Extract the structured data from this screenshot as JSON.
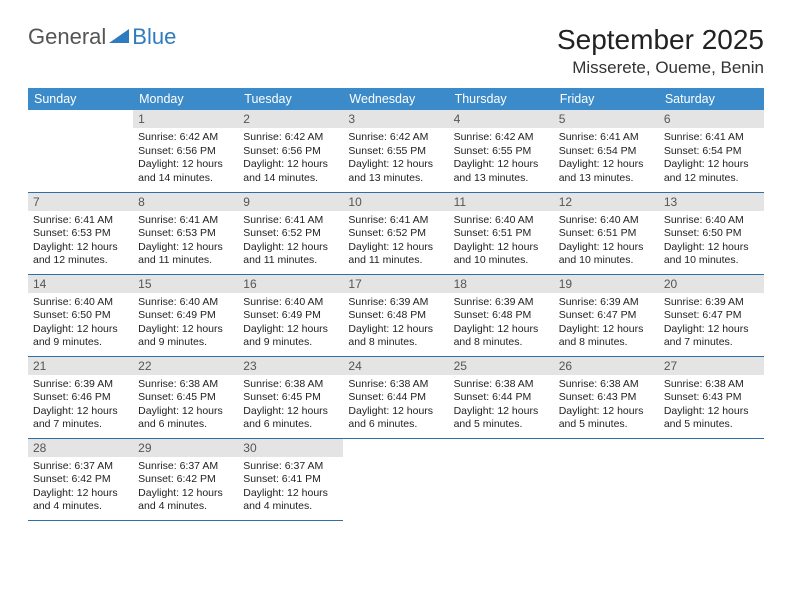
{
  "logo": {
    "text1": "General",
    "text2": "Blue"
  },
  "title": "September 2025",
  "location": "Misserete, Oueme, Benin",
  "colors": {
    "header_bg": "#3b8bca",
    "header_text": "#ffffff",
    "daynum_bg": "#e4e4e4",
    "border": "#2f6fa8",
    "logo_gray": "#555555",
    "logo_blue": "#2f7bbf"
  },
  "weekdays": [
    "Sunday",
    "Monday",
    "Tuesday",
    "Wednesday",
    "Thursday",
    "Friday",
    "Saturday"
  ],
  "weeks": [
    [
      {
        "n": "",
        "sr": "",
        "ss": "",
        "dl": ""
      },
      {
        "n": "1",
        "sr": "Sunrise: 6:42 AM",
        "ss": "Sunset: 6:56 PM",
        "dl": "Daylight: 12 hours and 14 minutes."
      },
      {
        "n": "2",
        "sr": "Sunrise: 6:42 AM",
        "ss": "Sunset: 6:56 PM",
        "dl": "Daylight: 12 hours and 14 minutes."
      },
      {
        "n": "3",
        "sr": "Sunrise: 6:42 AM",
        "ss": "Sunset: 6:55 PM",
        "dl": "Daylight: 12 hours and 13 minutes."
      },
      {
        "n": "4",
        "sr": "Sunrise: 6:42 AM",
        "ss": "Sunset: 6:55 PM",
        "dl": "Daylight: 12 hours and 13 minutes."
      },
      {
        "n": "5",
        "sr": "Sunrise: 6:41 AM",
        "ss": "Sunset: 6:54 PM",
        "dl": "Daylight: 12 hours and 13 minutes."
      },
      {
        "n": "6",
        "sr": "Sunrise: 6:41 AM",
        "ss": "Sunset: 6:54 PM",
        "dl": "Daylight: 12 hours and 12 minutes."
      }
    ],
    [
      {
        "n": "7",
        "sr": "Sunrise: 6:41 AM",
        "ss": "Sunset: 6:53 PM",
        "dl": "Daylight: 12 hours and 12 minutes."
      },
      {
        "n": "8",
        "sr": "Sunrise: 6:41 AM",
        "ss": "Sunset: 6:53 PM",
        "dl": "Daylight: 12 hours and 11 minutes."
      },
      {
        "n": "9",
        "sr": "Sunrise: 6:41 AM",
        "ss": "Sunset: 6:52 PM",
        "dl": "Daylight: 12 hours and 11 minutes."
      },
      {
        "n": "10",
        "sr": "Sunrise: 6:41 AM",
        "ss": "Sunset: 6:52 PM",
        "dl": "Daylight: 12 hours and 11 minutes."
      },
      {
        "n": "11",
        "sr": "Sunrise: 6:40 AM",
        "ss": "Sunset: 6:51 PM",
        "dl": "Daylight: 12 hours and 10 minutes."
      },
      {
        "n": "12",
        "sr": "Sunrise: 6:40 AM",
        "ss": "Sunset: 6:51 PM",
        "dl": "Daylight: 12 hours and 10 minutes."
      },
      {
        "n": "13",
        "sr": "Sunrise: 6:40 AM",
        "ss": "Sunset: 6:50 PM",
        "dl": "Daylight: 12 hours and 10 minutes."
      }
    ],
    [
      {
        "n": "14",
        "sr": "Sunrise: 6:40 AM",
        "ss": "Sunset: 6:50 PM",
        "dl": "Daylight: 12 hours and 9 minutes."
      },
      {
        "n": "15",
        "sr": "Sunrise: 6:40 AM",
        "ss": "Sunset: 6:49 PM",
        "dl": "Daylight: 12 hours and 9 minutes."
      },
      {
        "n": "16",
        "sr": "Sunrise: 6:40 AM",
        "ss": "Sunset: 6:49 PM",
        "dl": "Daylight: 12 hours and 9 minutes."
      },
      {
        "n": "17",
        "sr": "Sunrise: 6:39 AM",
        "ss": "Sunset: 6:48 PM",
        "dl": "Daylight: 12 hours and 8 minutes."
      },
      {
        "n": "18",
        "sr": "Sunrise: 6:39 AM",
        "ss": "Sunset: 6:48 PM",
        "dl": "Daylight: 12 hours and 8 minutes."
      },
      {
        "n": "19",
        "sr": "Sunrise: 6:39 AM",
        "ss": "Sunset: 6:47 PM",
        "dl": "Daylight: 12 hours and 8 minutes."
      },
      {
        "n": "20",
        "sr": "Sunrise: 6:39 AM",
        "ss": "Sunset: 6:47 PM",
        "dl": "Daylight: 12 hours and 7 minutes."
      }
    ],
    [
      {
        "n": "21",
        "sr": "Sunrise: 6:39 AM",
        "ss": "Sunset: 6:46 PM",
        "dl": "Daylight: 12 hours and 7 minutes."
      },
      {
        "n": "22",
        "sr": "Sunrise: 6:38 AM",
        "ss": "Sunset: 6:45 PM",
        "dl": "Daylight: 12 hours and 6 minutes."
      },
      {
        "n": "23",
        "sr": "Sunrise: 6:38 AM",
        "ss": "Sunset: 6:45 PM",
        "dl": "Daylight: 12 hours and 6 minutes."
      },
      {
        "n": "24",
        "sr": "Sunrise: 6:38 AM",
        "ss": "Sunset: 6:44 PM",
        "dl": "Daylight: 12 hours and 6 minutes."
      },
      {
        "n": "25",
        "sr": "Sunrise: 6:38 AM",
        "ss": "Sunset: 6:44 PM",
        "dl": "Daylight: 12 hours and 5 minutes."
      },
      {
        "n": "26",
        "sr": "Sunrise: 6:38 AM",
        "ss": "Sunset: 6:43 PM",
        "dl": "Daylight: 12 hours and 5 minutes."
      },
      {
        "n": "27",
        "sr": "Sunrise: 6:38 AM",
        "ss": "Sunset: 6:43 PM",
        "dl": "Daylight: 12 hours and 5 minutes."
      }
    ],
    [
      {
        "n": "28",
        "sr": "Sunrise: 6:37 AM",
        "ss": "Sunset: 6:42 PM",
        "dl": "Daylight: 12 hours and 4 minutes."
      },
      {
        "n": "29",
        "sr": "Sunrise: 6:37 AM",
        "ss": "Sunset: 6:42 PM",
        "dl": "Daylight: 12 hours and 4 minutes."
      },
      {
        "n": "30",
        "sr": "Sunrise: 6:37 AM",
        "ss": "Sunset: 6:41 PM",
        "dl": "Daylight: 12 hours and 4 minutes."
      },
      {
        "n": "",
        "sr": "",
        "ss": "",
        "dl": ""
      },
      {
        "n": "",
        "sr": "",
        "ss": "",
        "dl": ""
      },
      {
        "n": "",
        "sr": "",
        "ss": "",
        "dl": ""
      },
      {
        "n": "",
        "sr": "",
        "ss": "",
        "dl": ""
      }
    ]
  ]
}
